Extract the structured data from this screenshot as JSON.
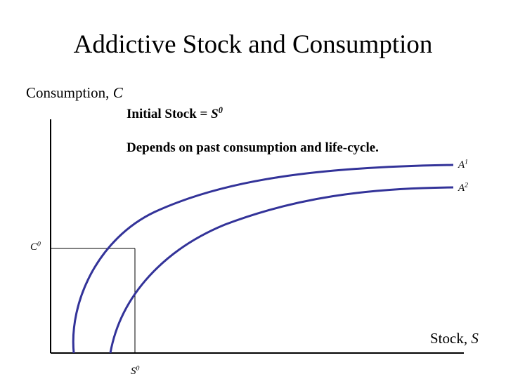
{
  "title": "Addictive Stock and Consumption",
  "y_axis": {
    "label": "Consumption, ",
    "var": "C"
  },
  "x_axis": {
    "label": "Stock, ",
    "var": "S"
  },
  "initial_stock": {
    "text": "Initial Stock = ",
    "var": "S",
    "sup": "0"
  },
  "note": "Depends on past consumption and life-cycle.",
  "curves": [
    {
      "name": "A",
      "sup": "1",
      "color": "#333399"
    },
    {
      "name": "A",
      "sup": "2",
      "color": "#333399"
    }
  ],
  "markers": {
    "c0": {
      "var": "C",
      "sup": "0"
    },
    "s0": {
      "var": "S",
      "sup": "0"
    }
  }
}
